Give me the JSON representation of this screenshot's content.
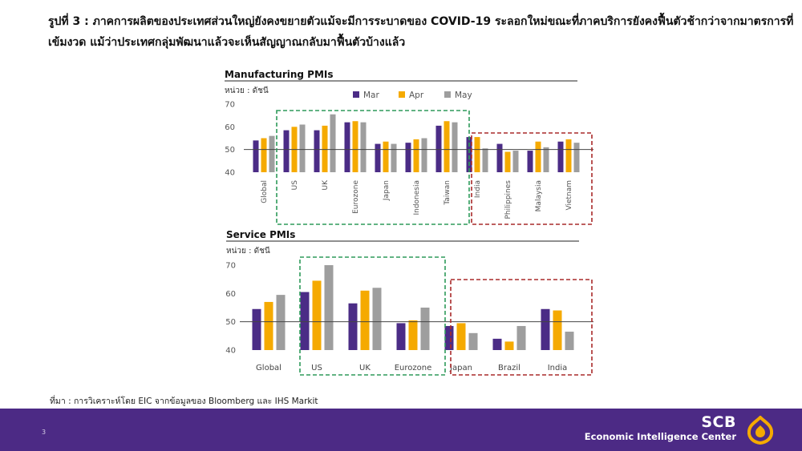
{
  "slide": {
    "title_line1": "รูปที่ 3 : ภาคการผลิตของประเทศส่วนใหญ่ยังคงขยายตัวแม้จะมีการระบาดของ COVID-19 ระลอกใหม่ขณะที่ภาคบริการยังคงฟื้นตัวช้ากว่าจากมาตรการที่",
    "title_line2": "เข้มงวด แม้ว่าประเทศกลุ่มพัฒนาแล้วจะเห็นสัญญาณกลับมาฟื้นตัวบ้างแล้ว",
    "source": "ที่มา : การวิเคราะห์โดย EIC จากข้อมูลของ Bloomberg และ IHS Markit",
    "page_number": "3"
  },
  "brand": {
    "name": "SCB",
    "subtitle": "Economic Intelligence Center",
    "logo_icon": "scb-shield-icon"
  },
  "colors": {
    "mar": "#4b2c86",
    "apr": "#f5aa00",
    "may": "#9e9e9e",
    "green_box": "#2e9a5a",
    "red_box": "#a92a2a",
    "footer": "#4c2a85"
  },
  "chart_data": [
    {
      "type": "bar",
      "title": "Manufacturing PMIs",
      "ylabel": "หน่วย : ดัชนี",
      "ylim": [
        40,
        70
      ],
      "yticks": [
        40,
        50,
        60,
        70
      ],
      "reference_line": 50,
      "categories": [
        "Global",
        "US",
        "UK",
        "Eurozone",
        "Japan",
        "Indonesia",
        "Taiwan",
        "India",
        "Philippines",
        "Malaysia",
        "Vietnam"
      ],
      "series": [
        {
          "name": "Mar",
          "values": [
            54.0,
            58.5,
            58.5,
            62.0,
            52.5,
            53.0,
            60.5,
            55.5,
            52.5,
            49.5,
            53.5
          ]
        },
        {
          "name": "Apr",
          "values": [
            55.0,
            60.0,
            60.5,
            62.5,
            53.5,
            54.5,
            62.5,
            55.5,
            49.0,
            53.5,
            54.5
          ]
        },
        {
          "name": "May",
          "values": [
            56.0,
            61.0,
            65.5,
            62.0,
            52.5,
            55.0,
            62.0,
            50.5,
            49.5,
            51.0,
            53.0
          ]
        }
      ],
      "legend": "top",
      "label_rotation": "vertical",
      "highlight_groups": [
        {
          "color": "green",
          "categories": [
            "US",
            "UK",
            "Eurozone",
            "Japan",
            "Indonesia",
            "Taiwan"
          ]
        },
        {
          "color": "red",
          "categories": [
            "India",
            "Philippines",
            "Malaysia",
            "Vietnam"
          ]
        }
      ]
    },
    {
      "type": "bar",
      "title": "Service PMIs",
      "ylabel": "หน่วย : ดัชนี",
      "ylim": [
        40,
        70
      ],
      "yticks": [
        40,
        50,
        60,
        70
      ],
      "reference_line": 50,
      "categories": [
        "Global",
        "US",
        "UK",
        "Eurozone",
        "Japan",
        "Brazil",
        "India"
      ],
      "series": [
        {
          "name": "Mar",
          "values": [
            54.5,
            60.5,
            56.5,
            49.5,
            48.5,
            44.0,
            54.5
          ]
        },
        {
          "name": "Apr",
          "values": [
            57.0,
            64.5,
            61.0,
            50.5,
            49.5,
            43.0,
            54.0
          ]
        },
        {
          "name": "May",
          "values": [
            59.5,
            70.0,
            62.0,
            55.0,
            46.0,
            48.5,
            46.5
          ]
        }
      ],
      "label_rotation": "horizontal",
      "highlight_groups": [
        {
          "color": "green",
          "categories": [
            "US",
            "UK",
            "Eurozone"
          ]
        },
        {
          "color": "red",
          "categories": [
            "Japan",
            "Brazil",
            "India"
          ]
        }
      ]
    }
  ]
}
